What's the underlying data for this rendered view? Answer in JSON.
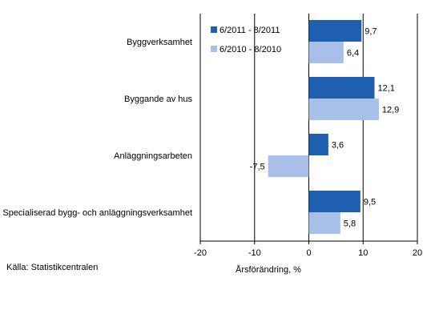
{
  "chart_data": {
    "type": "bar",
    "orientation": "horizontal",
    "categories": [
      "Byggverksamhet",
      "Byggande av hus",
      "Anläggningsarbeten",
      "Specialiserad bygg- och anläggningsverksamhet"
    ],
    "series": [
      {
        "name": "6/2011 - 8/2011",
        "values": [
          9.7,
          12.1,
          3.6,
          9.5
        ],
        "labels": [
          "9,7",
          "12,1",
          "3,6",
          "9,5"
        ],
        "color": "#1f5fb0"
      },
      {
        "name": "6/2010 - 8/2010",
        "values": [
          6.4,
          12.9,
          -7.5,
          5.8
        ],
        "labels": [
          "6,4",
          "12,9",
          "-7,5",
          "5,8"
        ],
        "color": "#a8bfea"
      }
    ],
    "xlabel": "Årsförändring, %",
    "xlim": [
      -20,
      20
    ],
    "xticks": [
      -20,
      -10,
      0,
      10,
      20
    ],
    "gridlines": "vertical, every 10",
    "legend": "top, inside plot"
  },
  "source": "Källa: Statistikcentralen"
}
